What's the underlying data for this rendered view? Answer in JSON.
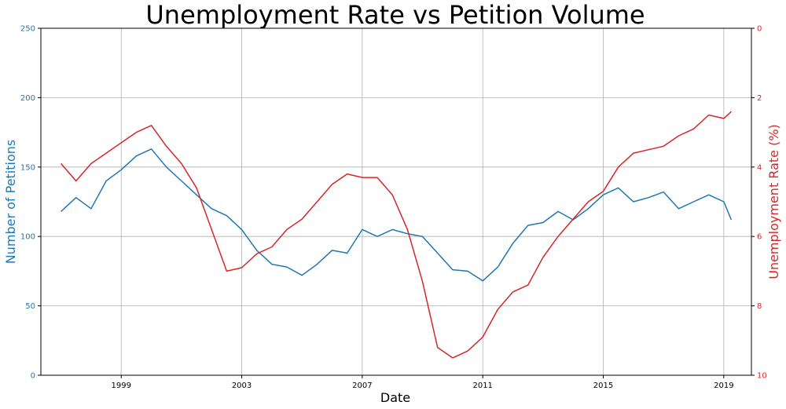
{
  "colors": {
    "left": "#1f77b4",
    "right": "#d62728",
    "grid": "#b0b0b0",
    "axis": "#000000"
  },
  "chart_data": {
    "type": "line",
    "title": "Unemployment Rate vs Petition Volume",
    "xlabel": "Date",
    "grid": true,
    "x_ticks": [
      "1999",
      "2003",
      "2007",
      "2011",
      "2015",
      "2019"
    ],
    "x_range": [
      "1996-05",
      "2019-12"
    ],
    "left_axis": {
      "label": "Number of Petitions",
      "ylim": [
        0,
        250
      ],
      "ticks": [
        "0",
        "50",
        "100",
        "150",
        "200",
        "250"
      ]
    },
    "right_axis": {
      "label": "Unemployment Rate (%)",
      "ylim": [
        10,
        0
      ],
      "inverted": true,
      "ticks": [
        "0",
        "2",
        "4",
        "6",
        "8",
        "10"
      ]
    },
    "series": [
      {
        "name": "",
        "axis": "left",
        "x": [
          "1997-01",
          "1997-07",
          "1998-01",
          "1998-07",
          "1999-01",
          "1999-07",
          "2000-01",
          "2000-07",
          "2001-01",
          "2001-07",
          "2002-01",
          "2002-07",
          "2003-01",
          "2003-07",
          "2004-01",
          "2004-07",
          "2005-01",
          "2005-07",
          "2006-01",
          "2006-07",
          "2007-01",
          "2007-07",
          "2008-01",
          "2008-07",
          "2009-01",
          "2009-07",
          "2010-01",
          "2010-07",
          "2011-01",
          "2011-07",
          "2012-01",
          "2012-07",
          "2013-01",
          "2013-07",
          "2014-01",
          "2014-07",
          "2015-01",
          "2015-07",
          "2016-01",
          "2016-07",
          "2017-01",
          "2017-07",
          "2018-01",
          "2018-07",
          "2019-01",
          "2019-04"
        ],
        "values": [
          118,
          128,
          120,
          140,
          148,
          158,
          163,
          150,
          140,
          130,
          120,
          115,
          105,
          90,
          80,
          78,
          72,
          80,
          90,
          88,
          105,
          100,
          105,
          102,
          100,
          88,
          76,
          75,
          68,
          78,
          95,
          108,
          110,
          118,
          112,
          120,
          130,
          135,
          125,
          128,
          132,
          120,
          125,
          130,
          125,
          112
        ]
      },
      {
        "name": "",
        "axis": "right",
        "x": [
          "1997-01",
          "1997-07",
          "1998-01",
          "1998-07",
          "1999-01",
          "1999-07",
          "2000-01",
          "2000-07",
          "2001-01",
          "2001-07",
          "2002-01",
          "2002-07",
          "2003-01",
          "2003-07",
          "2004-01",
          "2004-07",
          "2005-01",
          "2005-07",
          "2006-01",
          "2006-07",
          "2007-01",
          "2007-07",
          "2008-01",
          "2008-07",
          "2009-01",
          "2009-07",
          "2010-01",
          "2010-07",
          "2011-01",
          "2011-07",
          "2012-01",
          "2012-07",
          "2013-01",
          "2013-07",
          "2014-01",
          "2014-07",
          "2015-01",
          "2015-07",
          "2016-01",
          "2016-07",
          "2017-01",
          "2017-07",
          "2018-01",
          "2018-07",
          "2019-01",
          "2019-04"
        ],
        "values": [
          3.9,
          4.4,
          3.9,
          3.6,
          3.3,
          3.0,
          2.8,
          3.4,
          3.9,
          4.6,
          5.8,
          7.0,
          6.9,
          6.5,
          6.3,
          5.8,
          5.5,
          5.0,
          4.5,
          4.2,
          4.3,
          4.3,
          4.8,
          5.8,
          7.3,
          9.2,
          9.5,
          9.3,
          8.9,
          8.1,
          7.6,
          7.4,
          6.6,
          6.0,
          5.5,
          5.0,
          4.7,
          4.0,
          3.6,
          3.5,
          3.4,
          3.1,
          2.9,
          2.5,
          2.6,
          2.4
        ]
      }
    ]
  }
}
